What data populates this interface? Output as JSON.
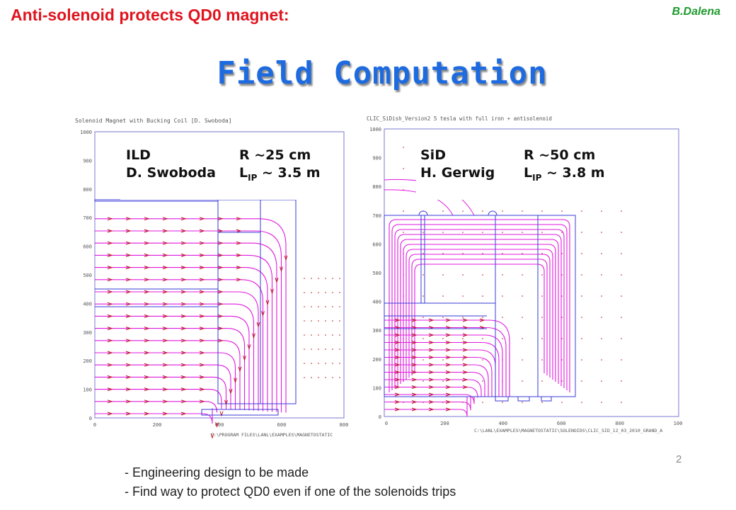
{
  "slide": {
    "title": "Anti-solenoid protects QD0 magnet:",
    "author": "B.Dalena",
    "heading": "Field Computation",
    "page_number": "2",
    "bullets": [
      "- Engineering design to be made",
      "- Find way to protect QD0 even if one of the solenoids trips"
    ]
  },
  "left_plot": {
    "header": "Solenoid Magnet with Bucking Coil    [D. Swoboda]",
    "footer_path": "C:\\PROGRAM FILES\\LANL\\EXAMPLES\\MAGNETOSTATIC",
    "y_ticks": [
      "1000",
      "900",
      "800",
      "700",
      "600",
      "500",
      "400",
      "300",
      "200",
      "100",
      "0"
    ],
    "x_ticks": [
      "0",
      "200",
      "400",
      "600",
      "800"
    ],
    "label_name": "ILD",
    "label_person": "D. Swoboda",
    "label_r": "R ~25 cm",
    "label_l": "L",
    "label_l_sub": "IP",
    "label_l_val": " ~ 3.5 m"
  },
  "right_plot": {
    "header": "CLIC_SiDish_Version2 5 tesla with full iron + antisolenoid",
    "footer_path": "C:\\LANL\\EXAMPLES\\MAGNETOSTATIC\\SOLENOIDS\\CLIC_SID_12_03_2010_GRAND_A",
    "y_ticks": [
      "1000",
      "900",
      "800",
      "700",
      "600",
      "500",
      "400",
      "300",
      "200",
      "100",
      "0"
    ],
    "x_ticks": [
      "0",
      "200",
      "400",
      "600",
      "800",
      "100"
    ],
    "label_name": "SiD",
    "label_person": "H. Gerwig",
    "label_r": "R ~50 cm",
    "label_l": "L",
    "label_l_sub": "IP",
    "label_l_val": " ~ 3.8 m"
  },
  "colors": {
    "title": "#e0141e",
    "author": "#1e9a2e",
    "heading": "#1e6be0",
    "field_lines": "#e01adf",
    "arrows": "#c0141e",
    "boundary": "#3a3ad8"
  }
}
